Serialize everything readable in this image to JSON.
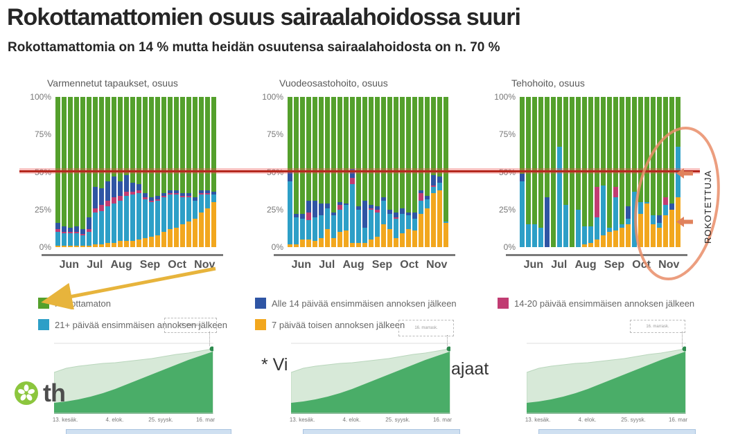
{
  "title": "Rokottamattomien osuus sairaalahoidossa suuri",
  "subtitle": "Rokottamattomia on 14 % mutta heidän osuutensa sairaalahoidosta on n. 70 %",
  "palette": {
    "green": "#54a02c",
    "teal": "#2d9fc7",
    "blue": "#2f55a4",
    "magenta": "#c13c72",
    "orange": "#f2a71e",
    "red_line": "#b5281e",
    "annotation_orange": "#e98d68",
    "arrow_orange": "#e0825c",
    "arrow_yellow": "#e7b43c",
    "mini_light": "#d7e9d8",
    "mini_light_edge": "#b9d6bc",
    "mini_dark": "#4aad68",
    "mini_dot": "#2e8b4f",
    "logo_green": "#8cc63e"
  },
  "chart_data": [
    {
      "type": "bar",
      "stacked": true,
      "title": "Varmennetut tapaukset, osuus",
      "ylabel": "",
      "xlabel": "",
      "ylim": [
        0,
        100
      ],
      "y_ticks": [
        "100%",
        "75%",
        "50%",
        "25%",
        "0%"
      ],
      "categories": [
        "Jun",
        "Jul",
        "Aug",
        "Sep",
        "Oct",
        "Nov"
      ],
      "segment_order": [
        "7 päivää toisen annoksen jälkeen",
        "21+ päivää ensimmäisen annoksen jälkeen",
        "14-20 päivää ensimmäisen annoksen jälkeen",
        "Alle 14 päivää ensimmäisen annoksen jälkeen"
      ],
      "remainder_series": "Rokottamaton",
      "bars": [
        [
          1,
          9,
          2,
          4
        ],
        [
          1,
          8,
          1,
          4
        ],
        [
          1,
          8,
          1,
          3
        ],
        [
          1,
          8,
          1,
          4
        ],
        [
          1,
          7,
          1,
          3
        ],
        [
          1,
          9,
          2,
          8
        ],
        [
          2,
          21,
          3,
          14
        ],
        [
          2,
          22,
          4,
          11
        ],
        [
          3,
          24,
          4,
          13
        ],
        [
          3,
          26,
          4,
          14
        ],
        [
          4,
          27,
          3,
          10
        ],
        [
          4,
          30,
          3,
          11
        ],
        [
          4,
          31,
          2,
          6
        ],
        [
          5,
          31,
          2,
          4
        ],
        [
          6,
          26,
          1,
          3
        ],
        [
          7,
          23,
          1,
          2
        ],
        [
          8,
          23,
          1,
          2
        ],
        [
          10,
          23,
          1,
          2
        ],
        [
          12,
          23,
          1,
          2
        ],
        [
          13,
          22,
          1,
          2
        ],
        [
          15,
          18,
          1,
          2
        ],
        [
          17,
          16,
          1,
          2
        ],
        [
          19,
          12,
          0,
          2
        ],
        [
          23,
          12,
          1,
          2
        ],
        [
          26,
          9,
          1,
          2
        ],
        [
          30,
          5,
          0,
          2
        ]
      ]
    },
    {
      "type": "bar",
      "stacked": true,
      "title": "Vuodeosastohoito, osuus",
      "ylabel": "",
      "xlabel": "",
      "ylim": [
        0,
        100
      ],
      "y_ticks": [
        "100%",
        "75%",
        "50%",
        "25%",
        "0%"
      ],
      "categories": [
        "Jun",
        "Jul",
        "Aug",
        "Sep",
        "Oct",
        "Nov"
      ],
      "segment_order": [
        "7 päivää toisen annoksen jälkeen",
        "21+ päivää ensimmäisen annoksen jälkeen",
        "14-20 päivää ensimmäisen annoksen jälkeen",
        "Alle 14 päivää ensimmäisen annoksen jälkeen"
      ],
      "remainder_series": "Rokottamaton",
      "bars": [
        [
          2,
          42,
          0,
          6
        ],
        [
          2,
          18,
          0,
          2
        ],
        [
          5,
          14,
          0,
          3
        ],
        [
          5,
          13,
          5,
          8
        ],
        [
          4,
          16,
          0,
          11
        ],
        [
          6,
          15,
          0,
          8
        ],
        [
          12,
          14,
          0,
          3
        ],
        [
          6,
          15,
          0,
          2
        ],
        [
          10,
          15,
          3,
          2
        ],
        [
          11,
          17,
          0,
          1
        ],
        [
          3,
          39,
          4,
          6
        ],
        [
          3,
          22,
          0,
          2
        ],
        [
          3,
          10,
          0,
          18
        ],
        [
          5,
          20,
          1,
          2
        ],
        [
          7,
          16,
          2,
          2
        ],
        [
          15,
          16,
          0,
          2
        ],
        [
          12,
          10,
          0,
          3
        ],
        [
          6,
          13,
          1,
          3
        ],
        [
          9,
          13,
          0,
          4
        ],
        [
          12,
          9,
          0,
          2
        ],
        [
          11,
          8,
          0,
          4
        ],
        [
          22,
          9,
          5,
          2
        ],
        [
          26,
          6,
          0,
          2
        ],
        [
          36,
          4,
          1,
          7
        ],
        [
          38,
          5,
          0,
          4
        ],
        [
          16,
          1,
          0,
          0
        ]
      ]
    },
    {
      "type": "bar",
      "stacked": true,
      "title": "Tehohoito, osuus",
      "ylabel": "",
      "xlabel": "",
      "ylim": [
        0,
        100
      ],
      "y_ticks": [
        "100%",
        "75%",
        "50%",
        "25%",
        "0%"
      ],
      "categories": [
        "Jun",
        "Jul",
        "Aug",
        "Sep",
        "Oct",
        "Nov"
      ],
      "segment_order": [
        "7 päivää toisen annoksen jälkeen",
        "21+ päivää ensimmäisen annoksen jälkeen",
        "14-20 päivää ensimmäisen annoksen jälkeen",
        "Alle 14 päivää ensimmäisen annoksen jälkeen"
      ],
      "remainder_series": "Rokottamaton",
      "bars": [
        [
          0,
          44,
          0,
          5
        ],
        [
          0,
          15,
          0,
          0
        ],
        [
          0,
          15,
          0,
          0
        ],
        [
          0,
          13,
          0,
          0
        ],
        [
          0,
          0,
          0,
          33
        ],
        [
          0,
          0,
          0,
          0
        ],
        [
          0,
          67,
          0,
          0
        ],
        [
          0,
          28,
          0,
          0
        ],
        [
          0,
          0,
          0,
          0
        ],
        [
          0,
          25,
          0,
          0
        ],
        [
          2,
          12,
          0,
          0
        ],
        [
          3,
          11,
          0,
          0
        ],
        [
          5,
          15,
          20,
          0
        ],
        [
          8,
          33,
          0,
          0
        ],
        [
          10,
          3,
          0,
          0
        ],
        [
          11,
          22,
          7,
          0
        ],
        [
          13,
          2,
          0,
          0
        ],
        [
          15,
          4,
          0,
          8
        ],
        [
          0,
          37,
          0,
          0
        ],
        [
          22,
          8,
          0,
          0
        ],
        [
          29,
          1,
          0,
          0
        ],
        [
          15,
          6,
          0,
          0
        ],
        [
          13,
          3,
          0,
          5
        ],
        [
          21,
          7,
          5,
          0
        ],
        [
          25,
          0,
          0,
          4
        ],
        [
          33,
          34,
          0,
          0
        ]
      ]
    },
    {
      "type": "area",
      "title": "",
      "note": "Three identical small cumulative vaccination coverage charts",
      "x_labels": [
        "13. kesäk.",
        "4. elok.",
        "25. syysk.",
        "16. mar"
      ],
      "series": [
        {
          "name": "first-dose-coverage-light-green",
          "values": [
            58,
            64,
            67,
            69,
            71,
            72,
            74,
            76,
            78,
            81,
            84,
            86,
            89,
            92
          ]
        },
        {
          "name": "second-dose-coverage-dark-green",
          "values": [
            14,
            16,
            19,
            23,
            28,
            34,
            41,
            48,
            55,
            62,
            69,
            76,
            82,
            88
          ]
        }
      ],
      "tooltip": "16. marrask."
    }
  ],
  "legend": [
    {
      "label": "Rokottamaton",
      "color": "green"
    },
    {
      "label": "Alle 14 päivää ensimmäisen annoksen jälkeen",
      "color": "blue"
    },
    {
      "label": "14-20 päivää ensimmäisen annoksen jälkeen",
      "color": "magenta"
    },
    {
      "label": "21+ päivää ensimmäisen annoksen jälkeen",
      "color": "teal"
    },
    {
      "label": "7 päivää toisen annoksen jälkeen",
      "color": "orange"
    }
  ],
  "annotations": {
    "rokotettuja_label": "ROKOTETTUJA",
    "red_line_value": "50%"
  },
  "footnote": {
    "visible_start": "* Vi",
    "visible_end": "ajaat"
  },
  "logo_text": "th"
}
